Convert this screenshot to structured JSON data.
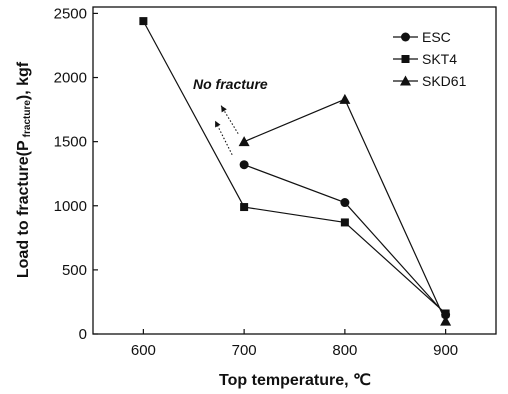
{
  "chart_data": {
    "type": "line",
    "xlabel": "Top temperature, ℃",
    "ylabel_main": "Load to fracture(P",
    "ylabel_sub": "fracture",
    "ylabel_end": "), kgf",
    "xlim": [
      550,
      950
    ],
    "ylim": [
      0,
      2550
    ],
    "x_ticks": [
      600,
      700,
      800,
      900
    ],
    "y_ticks": [
      0,
      500,
      1000,
      1500,
      2000,
      2500
    ],
    "grid": false,
    "legend_position": "top-right",
    "series": [
      {
        "name": "ESC",
        "marker": "circle",
        "x": [
          700,
          800,
          900
        ],
        "y": [
          1320,
          1025,
          150
        ]
      },
      {
        "name": "SKT4",
        "marker": "square",
        "x": [
          600,
          700,
          800,
          900
        ],
        "y": [
          2440,
          990,
          870,
          160
        ]
      },
      {
        "name": "SKD61",
        "marker": "triangle",
        "x": [
          700,
          800,
          900
        ],
        "y": [
          1500,
          1830,
          100
        ]
      }
    ],
    "annotation": {
      "text": "No fracture",
      "arrow_to_series": [
        "SKD61",
        "ESC"
      ],
      "at_x": 700
    }
  }
}
